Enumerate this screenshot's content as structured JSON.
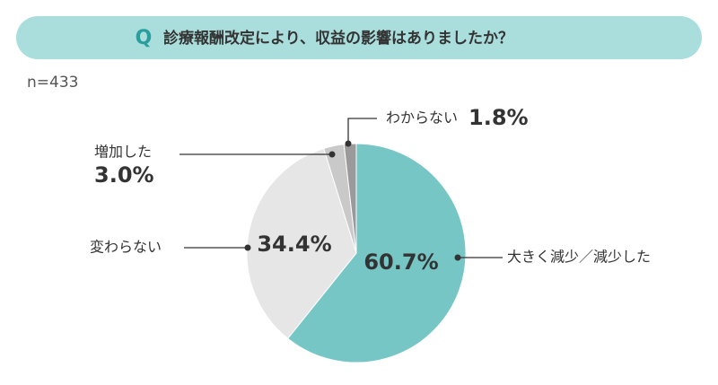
{
  "chart_data": {
    "type": "pie",
    "title_badge": "Q",
    "title": "診療報酬改定により、収益の影響はありましたか？",
    "sample_size": "n=433",
    "categories": [
      "大きく減少／減少した",
      "変わらない",
      "増加した",
      "わからない"
    ],
    "values": [
      60.7,
      34.4,
      3.0,
      1.8
    ],
    "value_labels": [
      "60.7%",
      "34.4%",
      "3.0%",
      "1.8%"
    ],
    "colors": [
      "#76c6c6",
      "#e6e6e6",
      "#c9c9c9",
      "#9a9a9a"
    ]
  }
}
